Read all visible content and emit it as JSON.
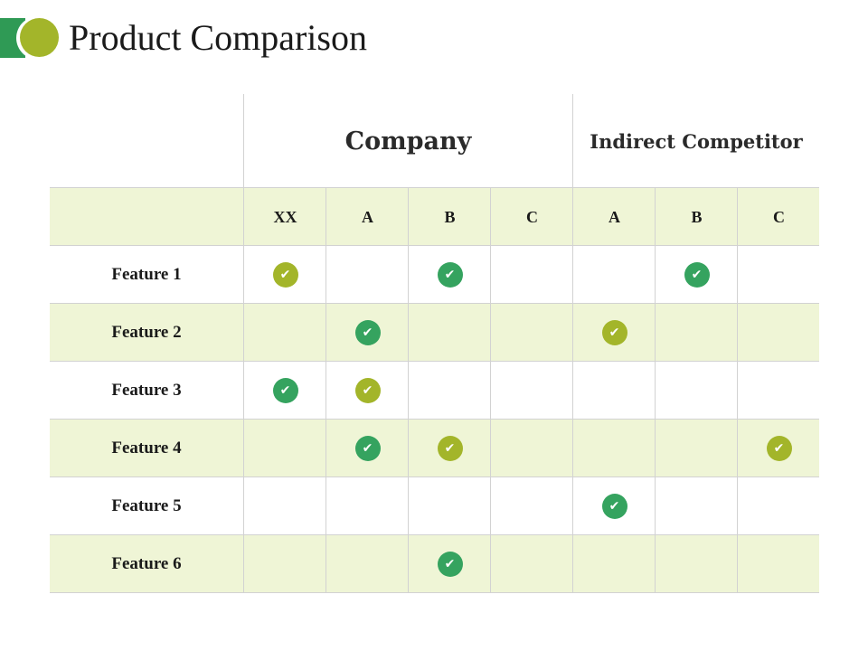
{
  "header": {
    "title": "Product Comparison",
    "logo_colors": [
      "#2f9a55",
      "#a3b52a"
    ]
  },
  "table": {
    "groups": [
      {
        "label": "Company",
        "columns": [
          "XX",
          "A",
          "B",
          "C"
        ]
      },
      {
        "label": "Indirect Competitor",
        "columns": [
          "A",
          "B",
          "C"
        ]
      }
    ],
    "row_band_color": "#eff5d6",
    "check_colors": {
      "green": "#35a35f",
      "lime": "#a3b52a"
    },
    "check_icon": "checkmark-icon",
    "rows": [
      {
        "label": "Feature 1",
        "cells": [
          "lime",
          null,
          "green",
          null,
          null,
          "green",
          null
        ]
      },
      {
        "label": "Feature 2",
        "cells": [
          null,
          "green",
          null,
          null,
          "lime",
          null,
          null
        ]
      },
      {
        "label": "Feature 3",
        "cells": [
          "green",
          "lime",
          null,
          null,
          null,
          null,
          null
        ]
      },
      {
        "label": "Feature 4",
        "cells": [
          null,
          "green",
          "lime",
          null,
          null,
          null,
          "lime"
        ]
      },
      {
        "label": "Feature 5",
        "cells": [
          null,
          null,
          null,
          null,
          "green",
          null,
          null
        ]
      },
      {
        "label": "Feature 6",
        "cells": [
          null,
          null,
          "green",
          null,
          null,
          null,
          null
        ]
      }
    ]
  }
}
